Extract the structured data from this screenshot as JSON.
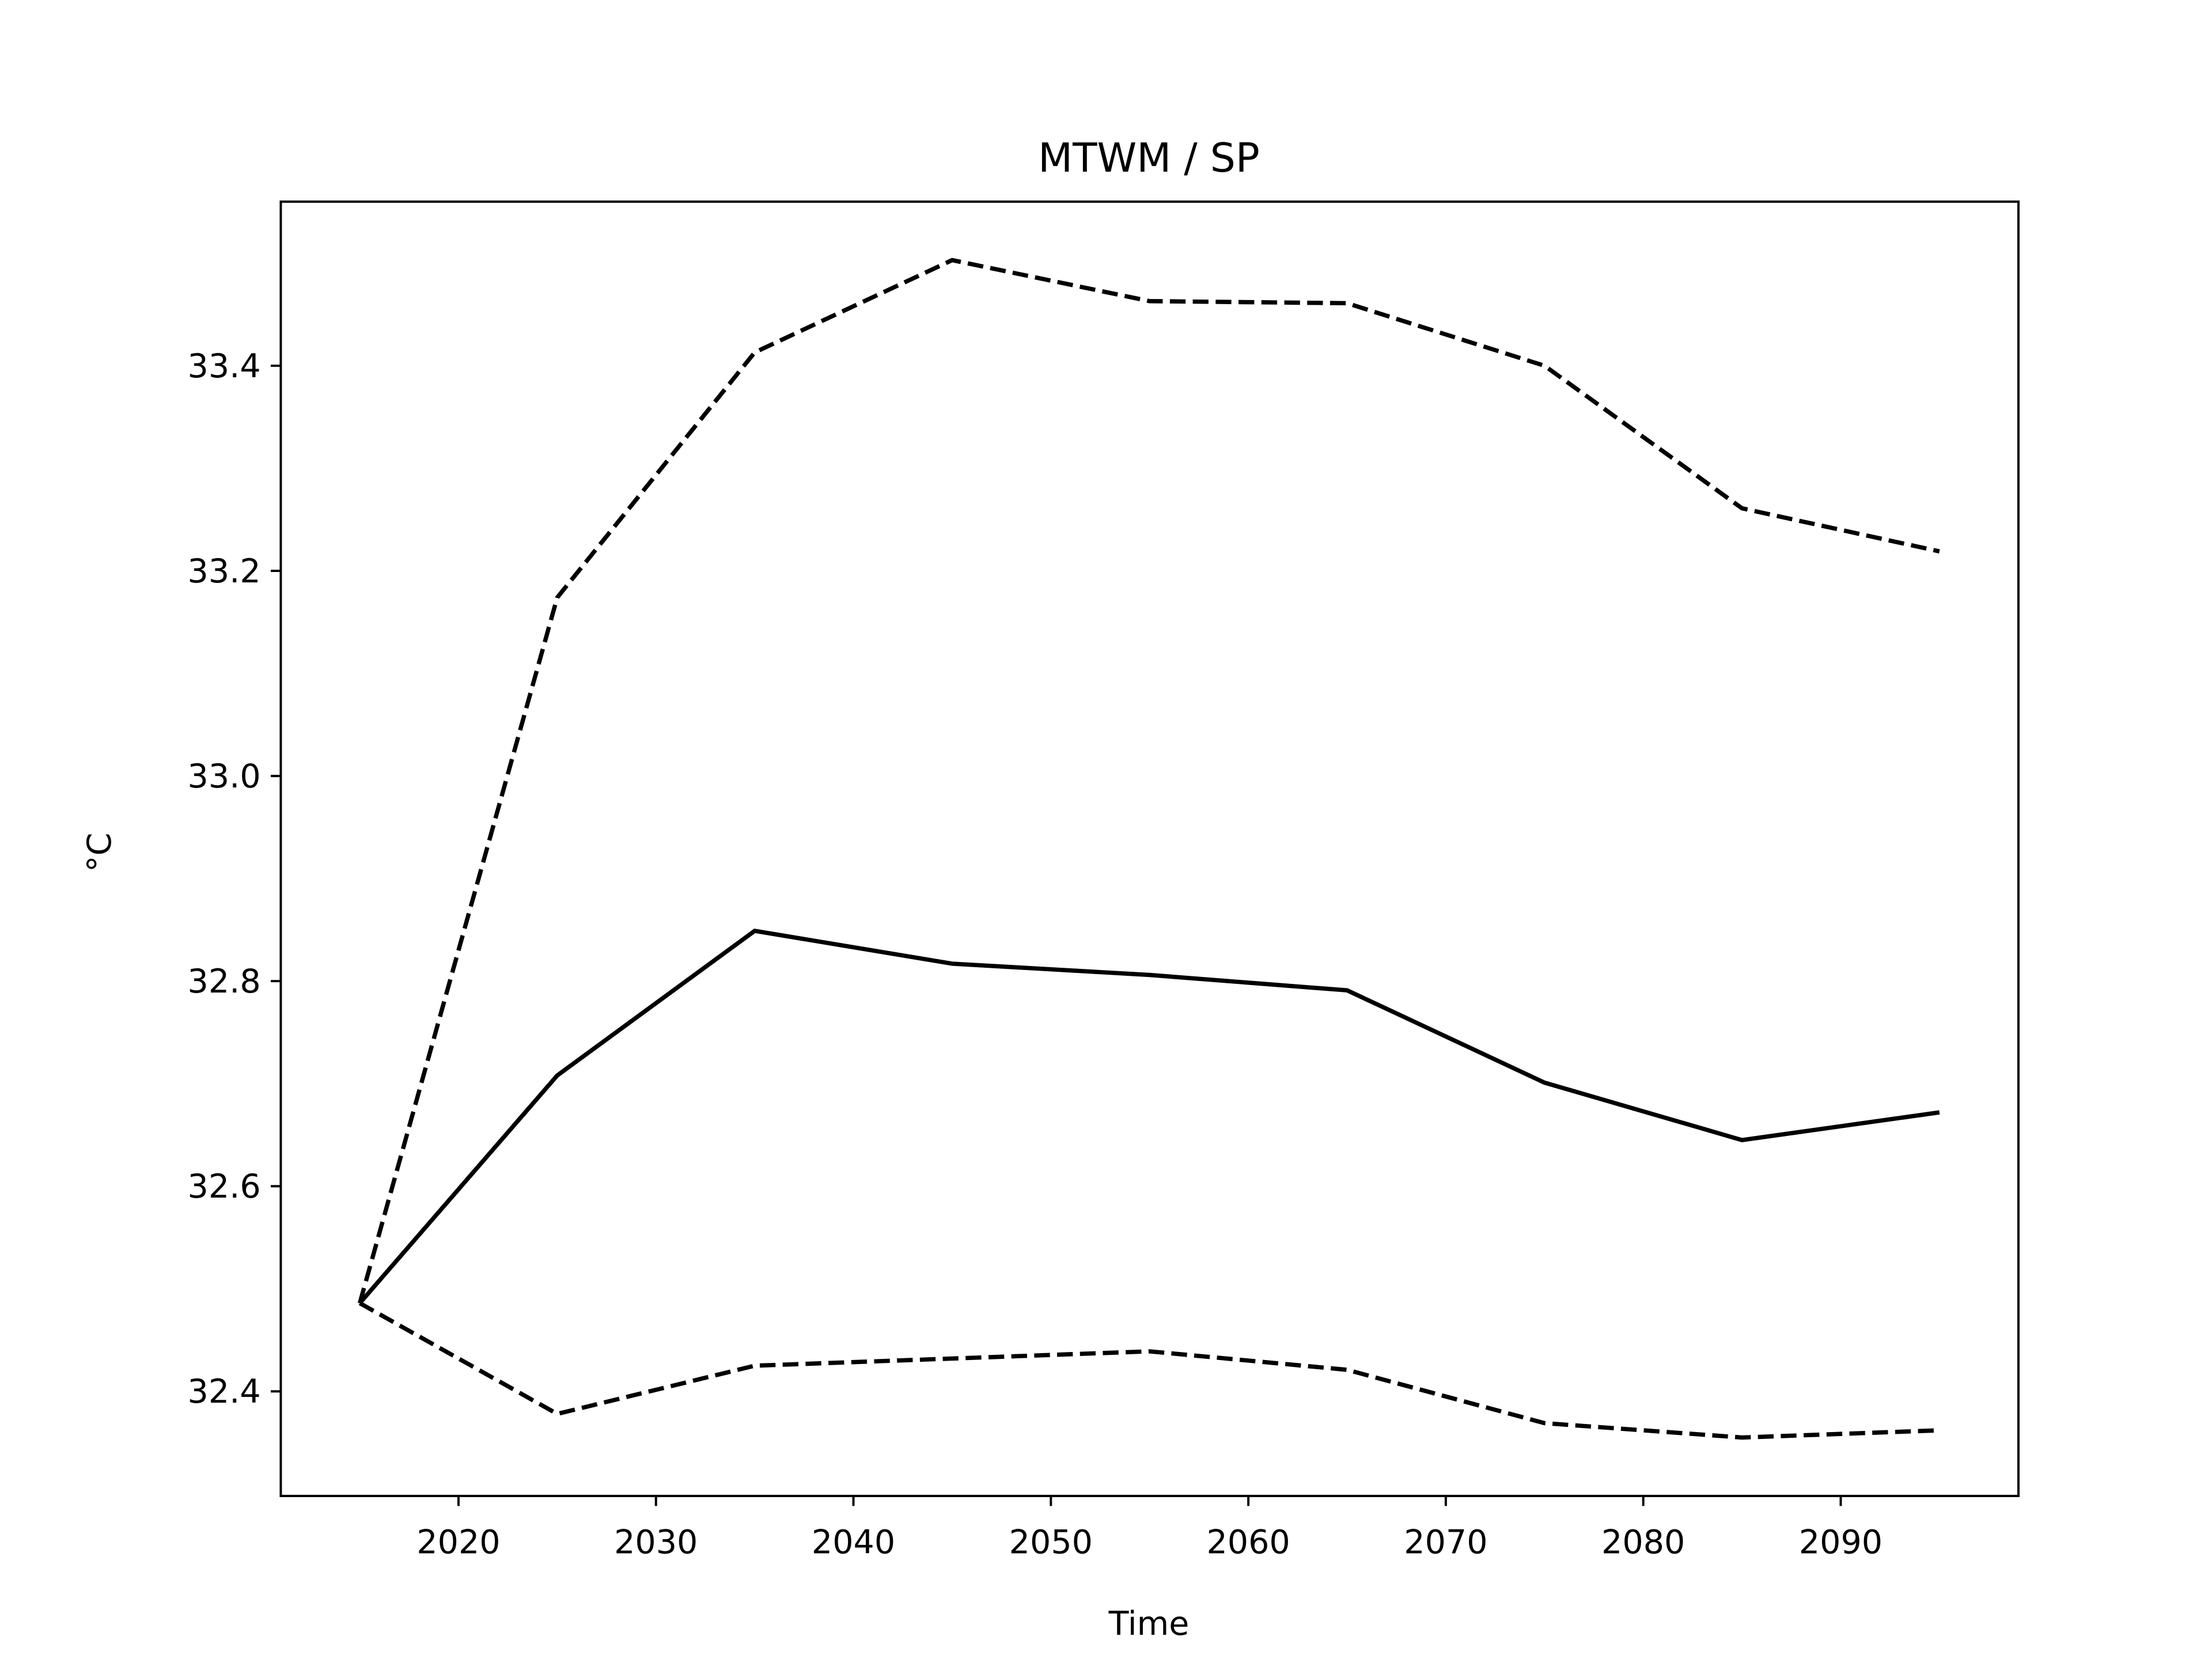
{
  "chart_data": {
    "type": "line",
    "title": "MTWM / SP",
    "xlabel": "Time",
    "ylabel": "°C",
    "x": [
      2015,
      2025,
      2035,
      2045,
      2055,
      2065,
      2075,
      2085,
      2095
    ],
    "series": [
      {
        "color": "#000000",
        "linestyle": "solid",
        "values": [
          32.486,
          32.708,
          32.849,
          32.817,
          32.806,
          32.791,
          32.701,
          32.645,
          32.672
        ]
      },
      {
        "color": "#000000",
        "linestyle": "dashed",
        "values": [
          32.486,
          33.174,
          33.413,
          33.503,
          33.463,
          33.461,
          33.4,
          33.261,
          33.219
        ]
      },
      {
        "color": "#000000",
        "linestyle": "dashed",
        "values": [
          32.486,
          32.378,
          32.425,
          32.432,
          32.439,
          32.421,
          32.369,
          32.355,
          32.362
        ]
      }
    ],
    "xlim": [
      2011,
      2099
    ],
    "xticks": [
      2020,
      2030,
      2040,
      2050,
      2060,
      2070,
      2080,
      2090
    ],
    "ylim": [
      32.298,
      33.56
    ],
    "yticks": [
      {
        "value": 32.4,
        "label": "32.4"
      },
      {
        "value": 32.6,
        "label": "32.6"
      },
      {
        "value": 32.8,
        "label": "32.8"
      },
      {
        "value": 33.0,
        "label": "33.0"
      },
      {
        "value": 33.2,
        "label": "33.2"
      },
      {
        "value": 33.4,
        "label": "33.4"
      }
    ],
    "grid": false
  }
}
